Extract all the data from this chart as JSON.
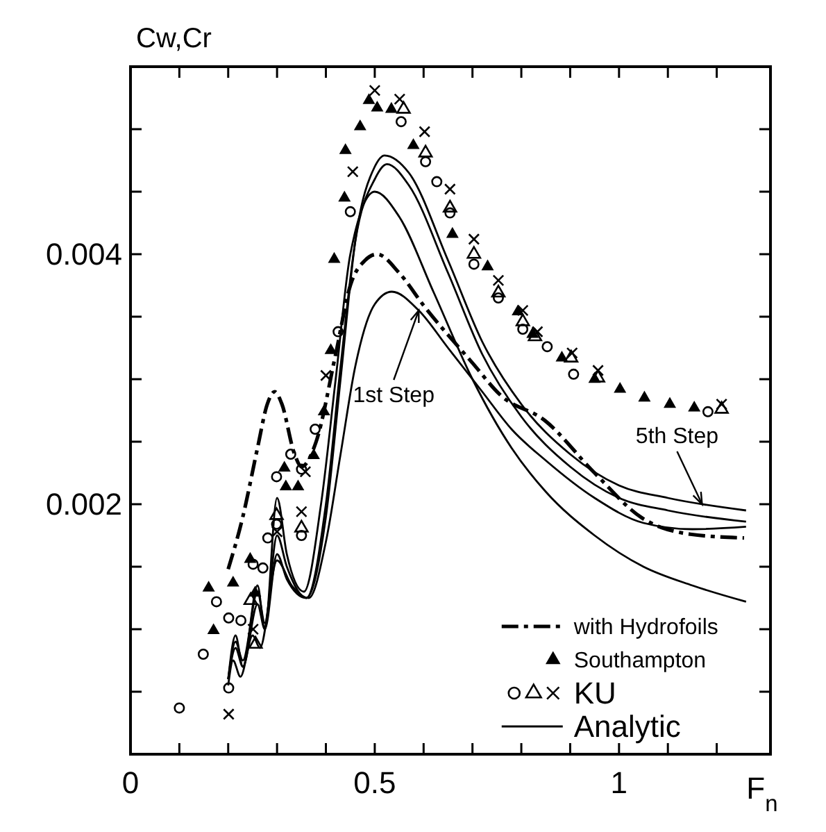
{
  "chart_data": {
    "type": "line",
    "xlabel": "F$_{n}$",
    "ylabel": "Cw,Cr",
    "xlim": [
      0,
      1.31
    ],
    "ylim": [
      0,
      0.0055
    ],
    "xticks": [
      0,
      {
        "value": 0.1,
        "label": null
      },
      {
        "value": 0.2,
        "label": null
      },
      {
        "value": 0.3,
        "label": null
      },
      {
        "value": 0.4,
        "label": null
      },
      0.5,
      {
        "value": 0.6,
        "label": null
      },
      {
        "value": 0.7,
        "label": null
      },
      {
        "value": 0.8,
        "label": null
      },
      {
        "value": 0.9,
        "label": null
      },
      1,
      {
        "value": 1.1,
        "label": null
      },
      {
        "value": 1.2,
        "label": null
      }
    ],
    "yticks": [
      {
        "value": 0.0005,
        "label": null
      },
      {
        "value": 0.001,
        "label": null
      },
      {
        "value": 0.0015,
        "label": null
      },
      0.002,
      {
        "value": 0.0025,
        "label": null
      },
      {
        "value": 0.003,
        "label": null
      },
      {
        "value": 0.0035,
        "label": null
      },
      0.004,
      {
        "value": 0.0045,
        "label": null
      },
      {
        "value": 0.005,
        "label": null
      }
    ],
    "grid": false,
    "legend": "bottom right",
    "series": [
      {
        "name": "with Hydrofoils",
        "line_style": "dashdot",
        "color": "#000000",
        "x": [
          0.2,
          0.23,
          0.26,
          0.28,
          0.295,
          0.31,
          0.335,
          0.35,
          0.38,
          0.42,
          0.45,
          0.48,
          0.505,
          0.55,
          0.6,
          0.7,
          0.758,
          0.848,
          0.95,
          1.047,
          1.146,
          1.256
        ],
        "values": [
          0.00148,
          0.0019,
          0.00245,
          0.0028,
          0.0029,
          0.0028,
          0.00241,
          0.0023,
          0.0025,
          0.0032,
          0.00375,
          0.00395,
          0.004,
          0.00385,
          0.00359,
          0.00313,
          0.00287,
          0.00267,
          0.00225,
          0.00189,
          0.00176,
          0.00173
        ]
      },
      {
        "name": "Southampton",
        "type": "scatter",
        "marker": "triangle",
        "color": "#000000",
        "x": [
          0.16,
          0.17,
          0.21,
          0.245,
          0.255,
          0.315,
          0.318,
          0.343,
          0.375,
          0.396,
          0.41,
          0.417,
          0.438,
          0.44,
          0.47,
          0.488,
          0.505,
          0.534,
          0.579,
          0.659,
          0.731,
          0.793,
          0.823,
          0.883,
          0.95,
          1.002,
          1.052,
          1.104,
          1.154
        ],
        "values": [
          0.00133,
          0.00099,
          0.00137,
          0.00156,
          0.00129,
          0.00229,
          0.00214,
          0.00214,
          0.00239,
          0.00274,
          0.00323,
          0.00396,
          0.00445,
          0.00483,
          0.00502,
          0.00523,
          0.00517,
          0.00516,
          0.00487,
          0.00416,
          0.0039,
          0.00354,
          0.00336,
          0.00317,
          0.003,
          0.00292,
          0.00285,
          0.0028,
          0.00277
        ]
      },
      {
        "name": "KU",
        "type": "scatter",
        "marker": "circle-open",
        "color": "#000000",
        "x": [
          0.1,
          0.149,
          0.176,
          0.201,
          0.201,
          0.226,
          0.251,
          0.271,
          0.281,
          0.299,
          0.299,
          0.328,
          0.35,
          0.35,
          0.378,
          0.425,
          0.45,
          0.554,
          0.604,
          0.627,
          0.654,
          0.703,
          0.753,
          0.803,
          0.853,
          0.907,
          1.182
        ],
        "values": [
          0.00037,
          0.0008,
          0.00122,
          0.00109,
          0.00053,
          0.00107,
          0.00152,
          0.00149,
          0.00173,
          0.00184,
          0.00222,
          0.0024,
          0.00175,
          0.00228,
          0.0026,
          0.00338,
          0.00434,
          0.00506,
          0.00474,
          0.00458,
          0.00433,
          0.00392,
          0.00365,
          0.0034,
          0.00326,
          0.00304,
          0.00274
        ]
      },
      {
        "type": "scatter",
        "marker": "triangle-open",
        "color": "#000000",
        "x": [
          0.246,
          0.256,
          0.299,
          0.35,
          0.559,
          0.604,
          0.654,
          0.703,
          0.753,
          0.803,
          0.828,
          0.902,
          0.957,
          1.21
        ],
        "values": [
          0.00123,
          0.00088,
          0.00191,
          0.00181,
          0.00516,
          0.00481,
          0.00437,
          0.004,
          0.00369,
          0.00346,
          0.00334,
          0.00317,
          0.00301,
          0.00276
        ]
      },
      {
        "type": "scatter",
        "marker": "cross",
        "color": "#000000",
        "x": [
          0.201,
          0.251,
          0.3,
          0.35,
          0.358,
          0.4,
          0.455,
          0.5,
          0.551,
          0.602,
          0.654,
          0.703,
          0.753,
          0.803,
          0.833,
          0.904,
          0.957,
          1.21
        ],
        "values": [
          0.00032,
          0.001,
          0.00178,
          0.00194,
          0.00226,
          0.00303,
          0.00466,
          0.00531,
          0.00524,
          0.00498,
          0.00452,
          0.00412,
          0.00379,
          0.00355,
          0.00338,
          0.00321,
          0.00307,
          0.0028
        ]
      },
      {
        "name": "Analytic",
        "line_style": "solid",
        "color": "#000000",
        "x": [
          0.2,
          0.21,
          0.225,
          0.25,
          0.265,
          0.3,
          0.33,
          0.365,
          0.4,
          0.43,
          0.46,
          0.5,
          0.535,
          0.59,
          0.65,
          0.72,
          0.78,
          0.85,
          0.95,
          1.05,
          1.15,
          1.26
        ],
        "values": [
          0.00055,
          0.00075,
          0.00062,
          0.00095,
          0.00085,
          0.00155,
          0.00135,
          0.00125,
          0.0017,
          0.0024,
          0.0031,
          0.0036,
          0.0037,
          0.00355,
          0.00325,
          0.0029,
          0.0026,
          0.00235,
          0.00205,
          0.00185,
          0.0018,
          0.00182
        ]
      },
      {
        "line_style": "solid",
        "color": "#000000",
        "x": [
          0.2,
          0.215,
          0.23,
          0.26,
          0.275,
          0.3,
          0.32,
          0.355,
          0.39,
          0.42,
          0.45,
          0.5,
          0.55,
          0.62,
          0.7,
          0.78,
          0.85,
          0.95,
          1.05,
          1.15,
          1.26
        ],
        "values": [
          0.0006,
          0.00095,
          0.0007,
          0.00135,
          0.001,
          0.00205,
          0.0016,
          0.0013,
          0.002,
          0.003,
          0.004,
          0.0045,
          0.0043,
          0.0037,
          0.003,
          0.00245,
          0.0021,
          0.00175,
          0.0015,
          0.00135,
          0.00122
        ]
      },
      {
        "line_style": "solid",
        "color": "#000000",
        "x": [
          0.2,
          0.215,
          0.23,
          0.26,
          0.275,
          0.3,
          0.32,
          0.36,
          0.4,
          0.43,
          0.46,
          0.5,
          0.525,
          0.57,
          0.65,
          0.72,
          0.8,
          0.9,
          1.0,
          1.1,
          1.26
        ],
        "values": [
          0.0006,
          0.0009,
          0.00075,
          0.0013,
          0.00105,
          0.00175,
          0.0015,
          0.00125,
          0.002,
          0.0031,
          0.0041,
          0.0046,
          0.00472,
          0.00455,
          0.00385,
          0.0032,
          0.0027,
          0.0023,
          0.00205,
          0.00195,
          0.00186
        ]
      },
      {
        "line_style": "solid",
        "color": "#000000",
        "x": [
          0.2,
          0.215,
          0.23,
          0.26,
          0.275,
          0.3,
          0.32,
          0.36,
          0.4,
          0.43,
          0.46,
          0.5,
          0.52,
          0.57,
          0.65,
          0.72,
          0.8,
          0.9,
          1.0,
          1.1,
          1.26
        ],
        "values": [
          0.0006,
          0.00085,
          0.0007,
          0.0012,
          0.001,
          0.0016,
          0.0014,
          0.00125,
          0.0019,
          0.003,
          0.0041,
          0.0047,
          0.00479,
          0.00465,
          0.00395,
          0.0033,
          0.0028,
          0.0024,
          0.00215,
          0.00205,
          0.00195
        ]
      }
    ],
    "annotations": [
      {
        "text": "1st Step",
        "x": 0.59,
        "y": 0.00355
      },
      {
        "text": "5th Step",
        "x": 1.17,
        "y": 0.002
      }
    ]
  }
}
